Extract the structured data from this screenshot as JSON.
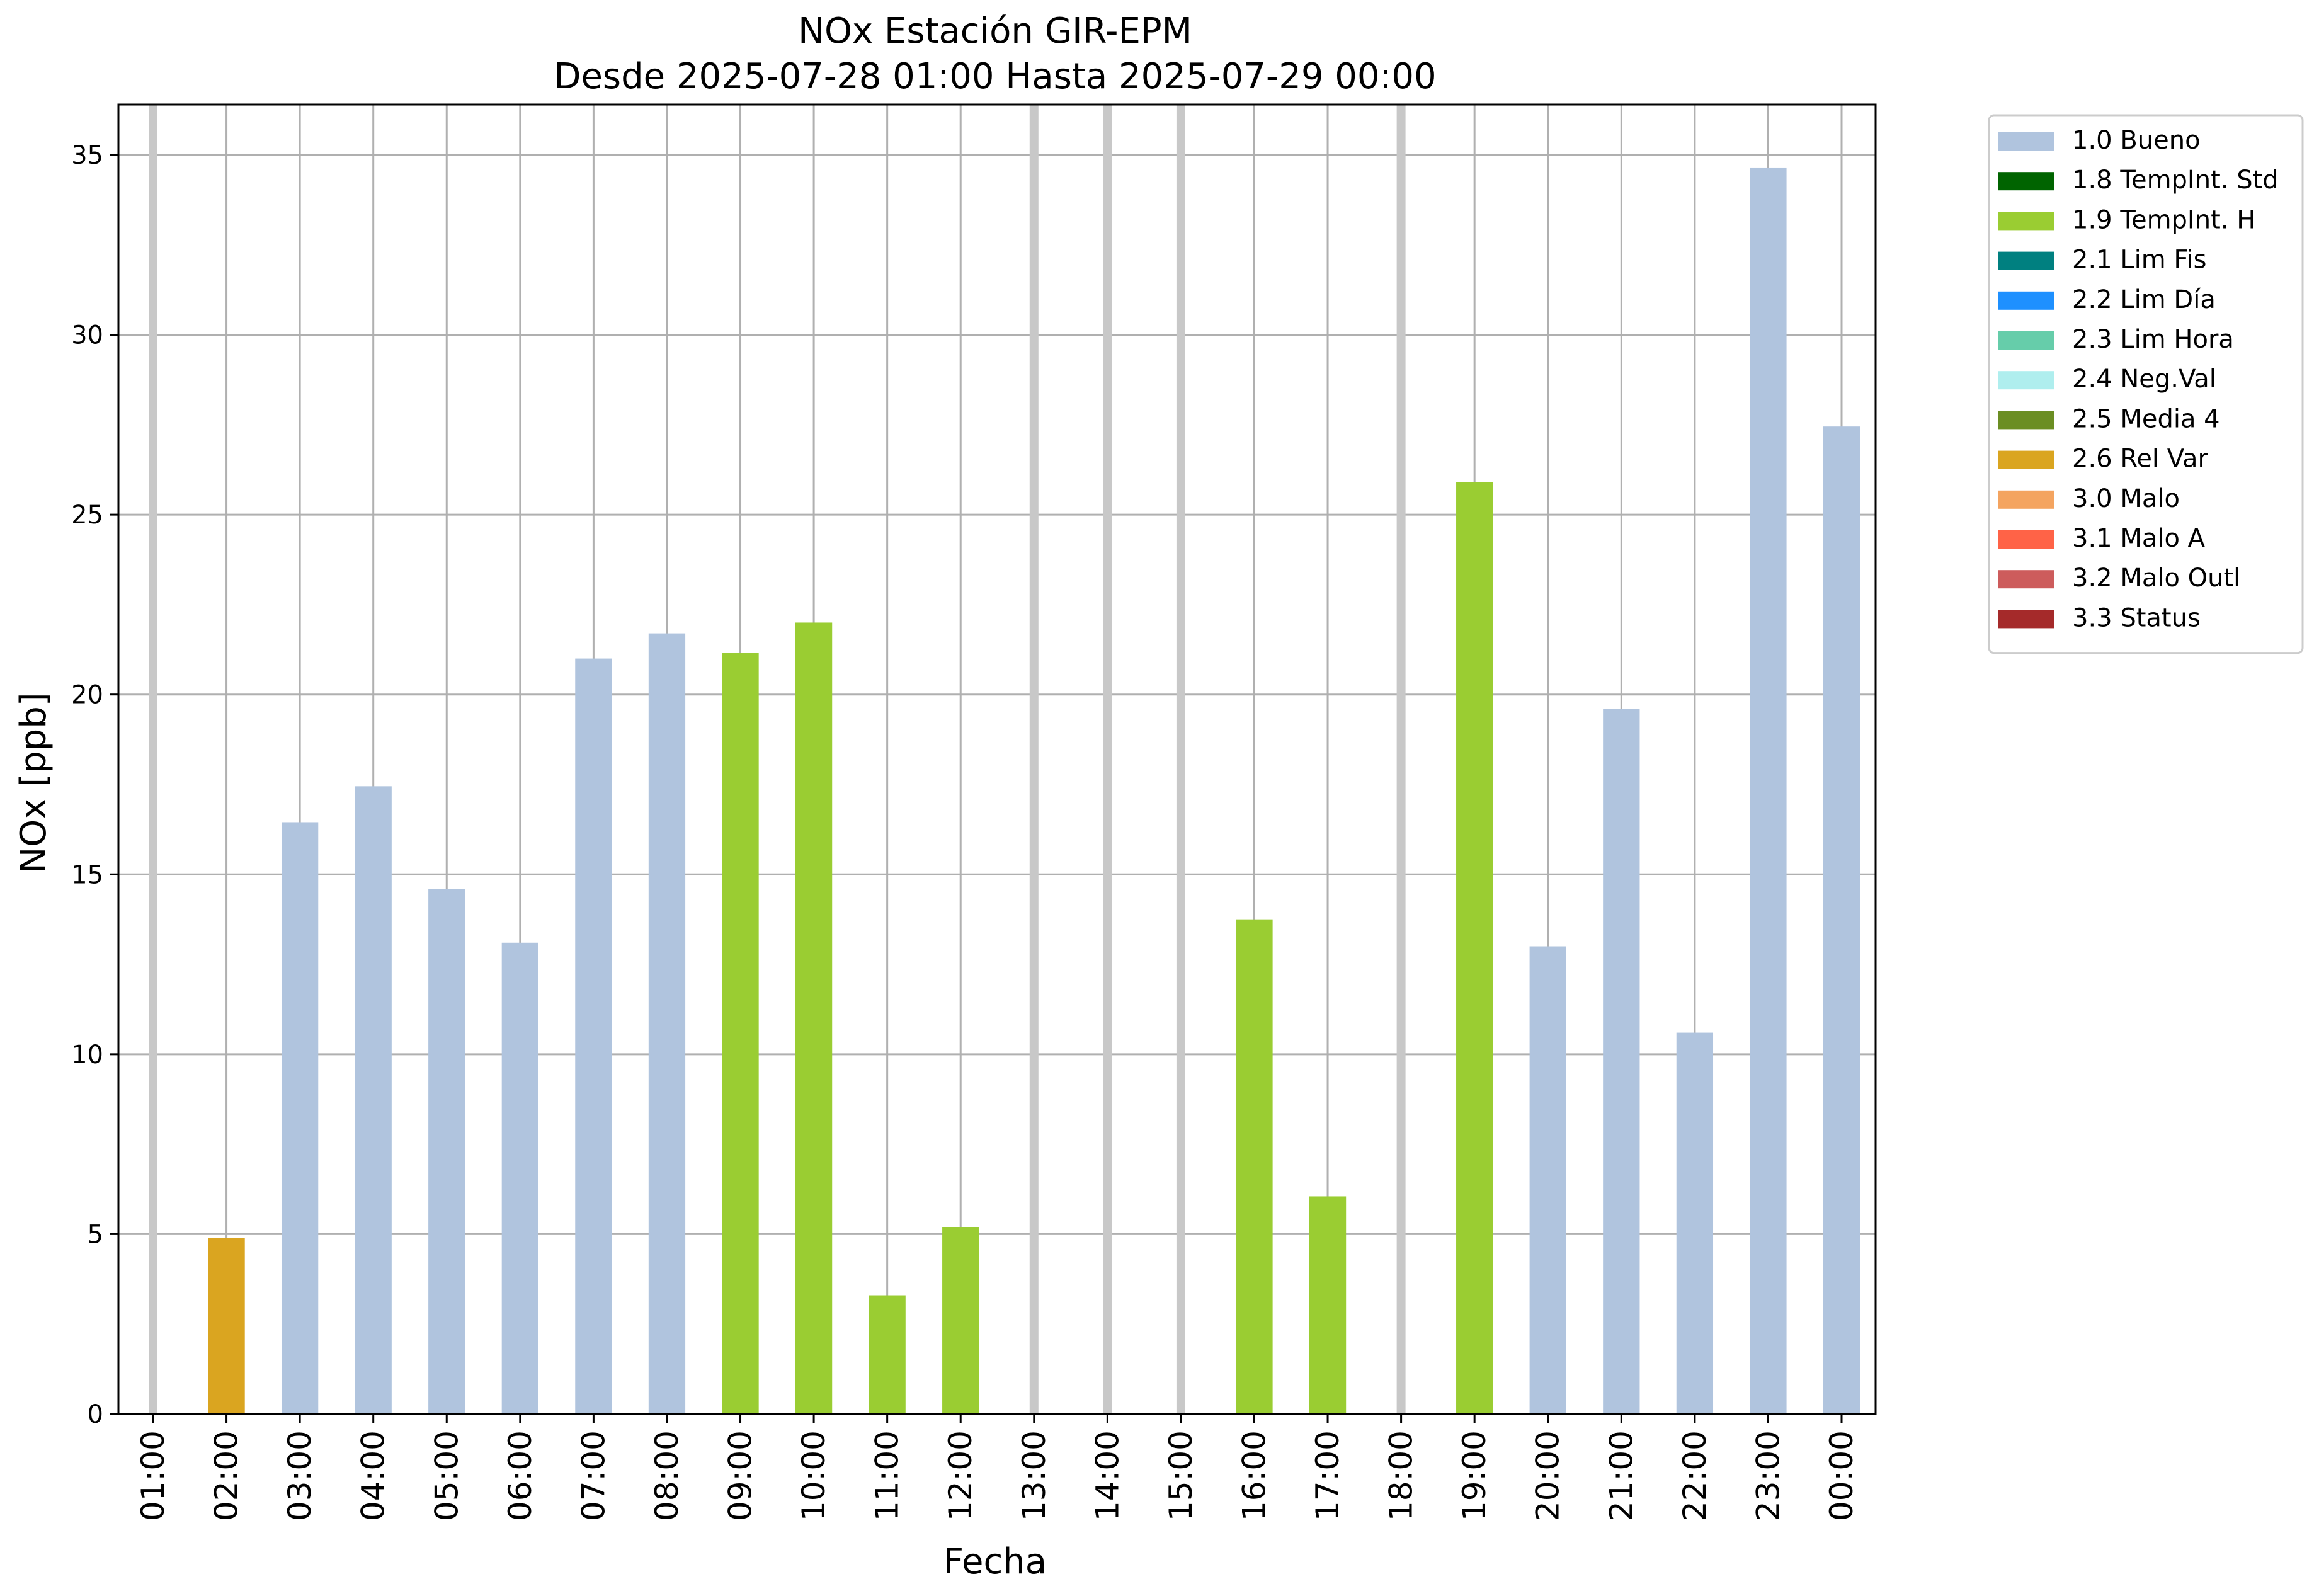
{
  "chart_data": {
    "type": "bar",
    "title": "NOx Estación GIR-EPM",
    "subtitle": "Desde 2025-07-28 01:00 Hasta 2025-07-29 00:00",
    "xlabel": "Fecha",
    "ylabel": "NOx [ppb]",
    "ylim": [
      0,
      36.4
    ],
    "yticks": [
      0,
      5,
      10,
      15,
      20,
      25,
      30,
      35
    ],
    "grid": true,
    "legend_position": "outside-right",
    "categories": [
      "01:00",
      "02:00",
      "03:00",
      "04:00",
      "05:00",
      "06:00",
      "07:00",
      "08:00",
      "09:00",
      "10:00",
      "11:00",
      "12:00",
      "13:00",
      "14:00",
      "15:00",
      "16:00",
      "17:00",
      "18:00",
      "19:00",
      "20:00",
      "21:00",
      "22:00",
      "23:00",
      "00:00"
    ],
    "values": [
      null,
      4.9,
      16.45,
      17.45,
      14.6,
      13.1,
      21.0,
      21.7,
      21.15,
      22.0,
      3.3,
      5.2,
      null,
      null,
      null,
      13.75,
      6.05,
      null,
      25.9,
      13.0,
      19.6,
      10.6,
      34.65,
      27.45
    ],
    "flags": [
      "missing",
      "2.6 Rel Var",
      "1.0 Bueno",
      "1.0 Bueno",
      "1.0 Bueno",
      "1.0 Bueno",
      "1.0 Bueno",
      "1.0 Bueno",
      "1.9 TempInt. H",
      "1.9 TempInt. H",
      "1.9 TempInt. H",
      "1.9 TempInt. H",
      "missing",
      "missing",
      "missing",
      "1.9 TempInt. H",
      "1.9 TempInt. H",
      "missing",
      "1.9 TempInt. H",
      "1.0 Bueno",
      "1.0 Bueno",
      "1.0 Bueno",
      "1.0 Bueno",
      "1.0 Bueno"
    ],
    "missing_marker_color": "#c8c8c8",
    "legend": [
      {
        "label": "1.0 Bueno",
        "color": "#b0c4de"
      },
      {
        "label": "1.8 TempInt. Std",
        "color": "#006400"
      },
      {
        "label": "1.9 TempInt. H",
        "color": "#9acd32"
      },
      {
        "label": "2.1 Lim Fis",
        "color": "#008080"
      },
      {
        "label": "2.2 Lim Día",
        "color": "#1e90ff"
      },
      {
        "label": "2.3 Lim Hora",
        "color": "#66cdaa"
      },
      {
        "label": "2.4 Neg.Val",
        "color": "#afeeee"
      },
      {
        "label": "2.5 Media 4",
        "color": "#6b8e23"
      },
      {
        "label": "2.6 Rel Var",
        "color": "#daa520"
      },
      {
        "label": "3.0 Malo",
        "color": "#f4a460"
      },
      {
        "label": "3.1 Malo A",
        "color": "#ff6347"
      },
      {
        "label": "3.2 Malo Outl",
        "color": "#cd5c5c"
      },
      {
        "label": "3.3 Status",
        "color": "#a52a2a"
      }
    ]
  }
}
